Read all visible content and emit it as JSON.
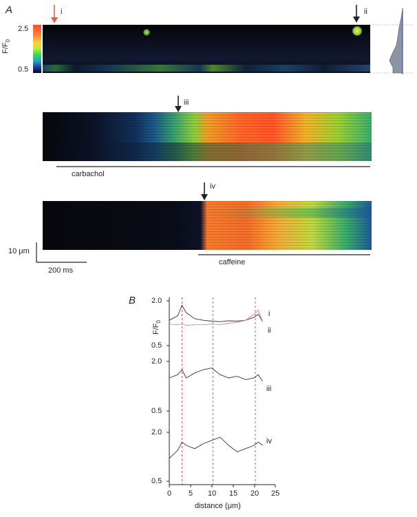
{
  "panel_a": {
    "letter": "A",
    "colorbar": {
      "ylabel": "F/F",
      "ylabel_sub": "0",
      "tick_top": "2.5",
      "tick_bottom": "0.5"
    },
    "arrows": {
      "i": "i",
      "ii": "ii",
      "iii": "iii",
      "iv": "iv"
    },
    "stim": {
      "carbachol": "carbachol",
      "caffeine": "caffeine"
    },
    "scale": {
      "y": "10 μm",
      "x": "200 ms"
    },
    "colors": {
      "arrow_i": "#e8604a",
      "arrow_dark": "#222222"
    }
  },
  "panel_b": {
    "letter": "B",
    "ylabel": "F/F",
    "ylabel_sub": "0",
    "xlabel": "distance (μm)",
    "xticks": [
      "0",
      "5",
      "10",
      "15",
      "20",
      "25"
    ],
    "top_ticks": [
      "2.0",
      "0.5"
    ],
    "mid_ticks": [
      "2.0",
      "0.5"
    ],
    "bot_ticks": [
      "2.0",
      "0.5"
    ],
    "trace_labels": {
      "i": "i",
      "ii": "ii",
      "iii": "iii",
      "iv": "iv"
    },
    "colors": {
      "trace_i": "#333333",
      "trace_ii": "#e8866e",
      "guide": "#c0392b"
    }
  },
  "chart_data": {
    "type": "line",
    "xlabel": "distance (μm)",
    "ylabel": "F/F0",
    "xlim": [
      0,
      25
    ],
    "ylim": [
      0.5,
      2.0
    ],
    "x": [
      0,
      2,
      3,
      4,
      6,
      8,
      10,
      12,
      14,
      16,
      18,
      20,
      21,
      22
    ],
    "series": [
      {
        "name": "i",
        "values": [
          1.35,
          1.5,
          1.85,
          1.6,
          1.4,
          1.35,
          1.32,
          1.3,
          1.33,
          1.32,
          1.35,
          1.45,
          1.55,
          1.3
        ]
      },
      {
        "name": "ii",
        "values": [
          1.22,
          1.2,
          1.22,
          1.18,
          1.2,
          1.2,
          1.22,
          1.2,
          1.25,
          1.28,
          1.35,
          1.55,
          1.7,
          1.3
        ]
      },
      {
        "name": "iii",
        "values": [
          1.5,
          1.6,
          1.75,
          1.5,
          1.65,
          1.75,
          1.8,
          1.6,
          1.5,
          1.55,
          1.45,
          1.5,
          1.6,
          1.4
        ]
      },
      {
        "name": "iv",
        "values": [
          1.2,
          1.45,
          1.7,
          1.6,
          1.5,
          1.65,
          1.75,
          1.85,
          1.6,
          1.4,
          1.5,
          1.6,
          1.7,
          1.6
        ]
      }
    ],
    "guides_x": [
      3,
      10.3,
      20.3
    ]
  }
}
